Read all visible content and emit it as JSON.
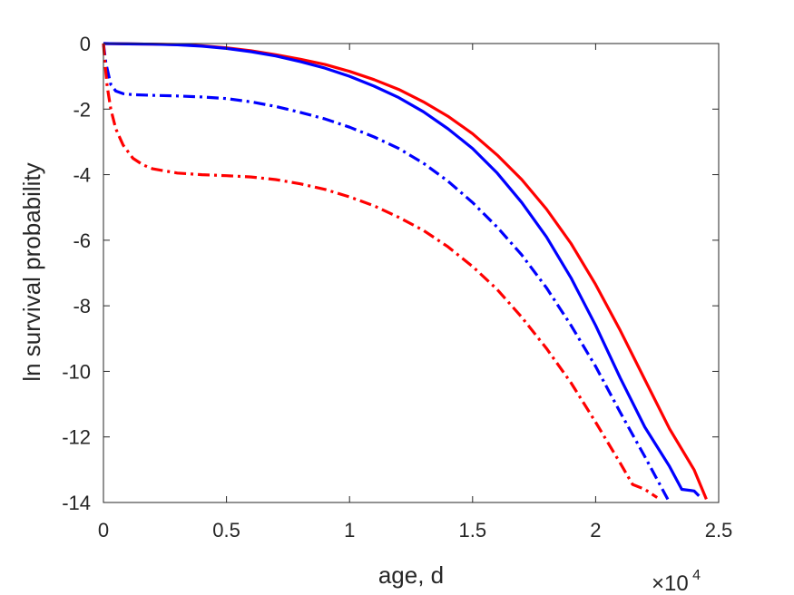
{
  "chart_data": {
    "type": "line",
    "xlabel": "age, d",
    "ylabel": "ln survival probability",
    "x_exponent": {
      "base": "×10",
      "power": "4"
    },
    "xlim": [
      0,
      25000
    ],
    "ylim": [
      -14,
      0
    ],
    "xticks": [
      0,
      5000,
      10000,
      15000,
      20000,
      25000
    ],
    "xtick_labels": [
      "0",
      "0.5",
      "1",
      "1.5",
      "2",
      "2.5"
    ],
    "yticks": [
      0,
      -2,
      -4,
      -6,
      -8,
      -10,
      -12,
      -14
    ],
    "ytick_labels": [
      "0",
      "-2",
      "-4",
      "-6",
      "-8",
      "-10",
      "-12",
      "-14"
    ],
    "grid": false,
    "series": [
      {
        "color": "#ff0000",
        "style": "solid",
        "x": [
          0,
          1000,
          2000,
          3000,
          4000,
          5000,
          6000,
          7000,
          8000,
          9000,
          10000,
          11000,
          12000,
          13000,
          14000,
          15000,
          16000,
          17000,
          18000,
          19000,
          20000,
          21000,
          22000,
          23000,
          24000,
          24500
        ],
        "y": [
          0,
          -0.01,
          -0.02,
          -0.03,
          -0.07,
          -0.13,
          -0.22,
          -0.34,
          -0.48,
          -0.64,
          -0.85,
          -1.1,
          -1.4,
          -1.78,
          -2.22,
          -2.75,
          -3.4,
          -4.15,
          -5.05,
          -6.1,
          -7.35,
          -8.75,
          -10.25,
          -11.75,
          -13.0,
          -13.9
        ]
      },
      {
        "color": "#0000ff",
        "style": "solid",
        "x": [
          0,
          1000,
          2000,
          3000,
          4000,
          5000,
          6000,
          7000,
          8000,
          9000,
          10000,
          11000,
          12000,
          13000,
          14000,
          15000,
          16000,
          17000,
          18000,
          19000,
          20000,
          21000,
          22000,
          23000,
          23500,
          24000,
          24200
        ],
        "y": [
          0,
          -0.01,
          -0.02,
          -0.04,
          -0.08,
          -0.15,
          -0.25,
          -0.38,
          -0.55,
          -0.75,
          -1.0,
          -1.3,
          -1.65,
          -2.08,
          -2.6,
          -3.2,
          -3.95,
          -4.85,
          -5.9,
          -7.15,
          -8.6,
          -10.2,
          -11.7,
          -12.9,
          -13.6,
          -13.65,
          -13.8
        ]
      },
      {
        "color": "#0000ff",
        "style": "dashdot",
        "x": [
          0,
          100,
          300,
          500,
          800,
          1200,
          2000,
          3000,
          4000,
          5000,
          6000,
          7000,
          8000,
          9000,
          10000,
          11000,
          12000,
          13000,
          14000,
          15000,
          16000,
          17000,
          18000,
          19000,
          20000,
          21000,
          22000,
          22500,
          23000
        ],
        "y": [
          0,
          -0.6,
          -1.25,
          -1.45,
          -1.53,
          -1.56,
          -1.58,
          -1.6,
          -1.63,
          -1.68,
          -1.78,
          -1.92,
          -2.1,
          -2.3,
          -2.55,
          -2.85,
          -3.2,
          -3.65,
          -4.2,
          -4.85,
          -5.6,
          -6.45,
          -7.45,
          -8.6,
          -9.85,
          -11.25,
          -12.6,
          -13.3,
          -14.0
        ]
      },
      {
        "color": "#ff0000",
        "style": "dashdot",
        "x": [
          0,
          50,
          150,
          300,
          500,
          800,
          1200,
          1600,
          2000,
          3000,
          4000,
          5000,
          6000,
          7000,
          8000,
          9000,
          10000,
          11000,
          12000,
          13000,
          14000,
          15000,
          16000,
          17000,
          18000,
          19000,
          20000,
          21000,
          21500,
          22000,
          22500
        ],
        "y": [
          0,
          -0.5,
          -1.3,
          -2.0,
          -2.6,
          -3.1,
          -3.5,
          -3.7,
          -3.82,
          -3.95,
          -4.0,
          -4.03,
          -4.07,
          -4.15,
          -4.28,
          -4.45,
          -4.68,
          -4.95,
          -5.3,
          -5.7,
          -6.2,
          -6.8,
          -7.5,
          -8.35,
          -9.3,
          -10.35,
          -11.55,
          -12.8,
          -13.45,
          -13.6,
          -13.85
        ]
      }
    ]
  }
}
